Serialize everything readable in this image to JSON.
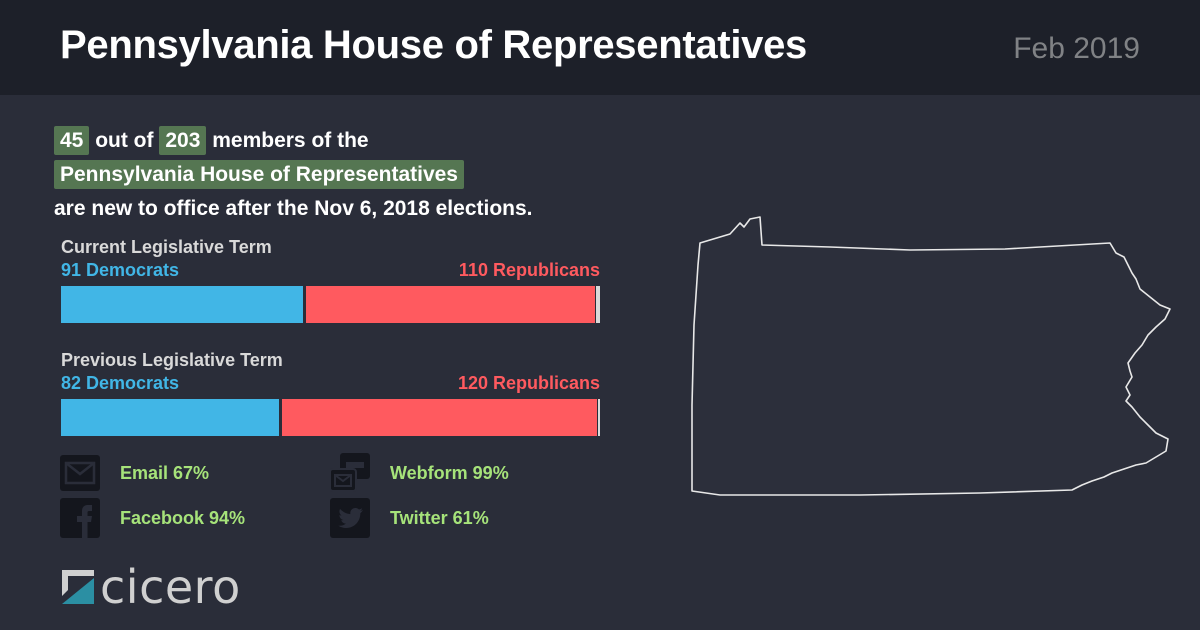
{
  "header": {
    "title": "Pennsylvania House of Representatives",
    "date": "Feb 2019"
  },
  "headline": {
    "new_count": "45",
    "t1": " out of ",
    "total": "203",
    "t2": " members of the",
    "chamber": "Pennsylvania House of Representatives",
    "t3": "are new to office after the Nov 6, 2018 elections."
  },
  "chart_data": {
    "type": "bar",
    "title": "",
    "colors": {
      "democrats": "#41b6e6",
      "republicans": "#ff5a5f",
      "other": "#d9d9d9"
    },
    "terms": [
      {
        "label": "Current Legislative Term",
        "democrats": 91,
        "democrats_label": "91 Democrats",
        "republicans": 110,
        "republicans_label": "110 Republicans",
        "total": 203
      },
      {
        "label": "Previous Legislative Term",
        "democrats": 82,
        "democrats_label": "82 Democrats",
        "republicans": 120,
        "republicans_label": "120 Republicans",
        "total": 203
      }
    ]
  },
  "contacts": [
    {
      "label": "Email 67%",
      "icon": "email-icon",
      "value": 67
    },
    {
      "label": "Webform 99%",
      "icon": "webform-icon",
      "value": 99
    },
    {
      "label": "Facebook 94%",
      "icon": "facebook-icon",
      "value": 94
    },
    {
      "label": "Twitter 61%",
      "icon": "twitter-icon",
      "value": 61
    }
  ],
  "logo": {
    "text": "cicero"
  }
}
